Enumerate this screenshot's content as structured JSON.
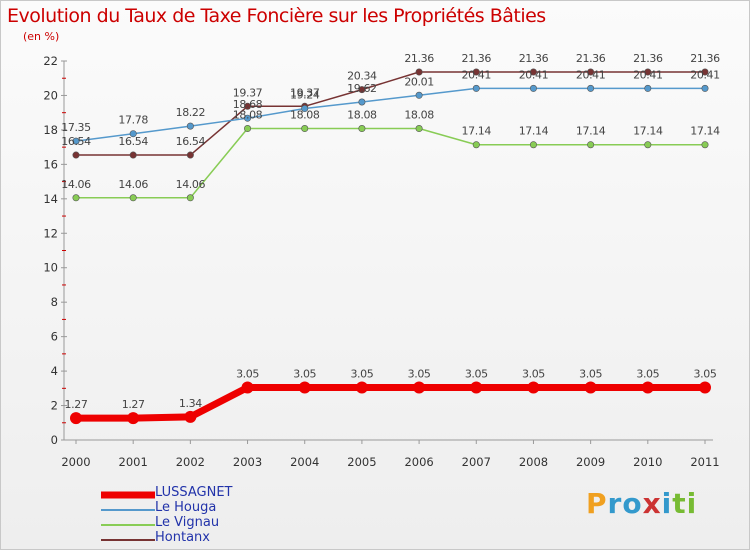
{
  "title": "Evolution du Taux de Taxe Foncière sur les Propriétés Bâties",
  "subtitle": "(en %)",
  "brand": {
    "letters": [
      "P",
      "r",
      "o",
      "x",
      "i",
      "t",
      "i"
    ],
    "colors": [
      "#f0a020",
      "#3399cc",
      "#3399cc",
      "#cc3333",
      "#3399cc",
      "#77bb33",
      "#77bb33"
    ]
  },
  "chart_data": {
    "type": "line",
    "title": "Evolution du Taux de Taxe Foncière sur les Propriétés Bâties",
    "subtitle": "(en %)",
    "xlabel": "",
    "ylabel": "",
    "x": [
      "2000",
      "2001",
      "2002",
      "2003",
      "2004",
      "2005",
      "2006",
      "2007",
      "2008",
      "2009",
      "2010",
      "2011"
    ],
    "ylim": [
      0,
      22
    ],
    "yticks": [
      0,
      2,
      4,
      6,
      8,
      10,
      12,
      14,
      16,
      18,
      20,
      22
    ],
    "grid": false,
    "legend_position": "bottom-left",
    "series": [
      {
        "name": "LUSSAGNET",
        "color": "#ee0000",
        "values": [
          1.27,
          1.27,
          1.34,
          3.05,
          3.05,
          3.05,
          3.05,
          3.05,
          3.05,
          3.05,
          3.05,
          3.05
        ],
        "labels": [
          "1.27",
          "1.27",
          "1.34",
          "3.05",
          "3.05",
          "3.05",
          "3.05",
          "3.05",
          "3.05",
          "3.05",
          "3.05",
          "3.05"
        ]
      },
      {
        "name": "Le Houga",
        "color": "#5599cc",
        "values": [
          17.35,
          17.78,
          18.22,
          18.68,
          19.24,
          19.62,
          20.01,
          20.41,
          20.41,
          20.41,
          20.41,
          20.41
        ],
        "labels": [
          "17.35",
          "17.78",
          "18.22",
          "18.68",
          "19.24",
          "19.62",
          "20.01",
          "20.41",
          "20.41",
          "20.41",
          "20.41",
          "20.41"
        ]
      },
      {
        "name": "Le Vignau",
        "color": "#88cc55",
        "values": [
          14.06,
          14.06,
          14.06,
          18.08,
          18.08,
          18.08,
          18.08,
          17.14,
          17.14,
          17.14,
          17.14,
          17.14
        ],
        "labels": [
          "14.06",
          "14.06",
          "14.06",
          "18.08",
          "18.08",
          "18.08",
          "18.08",
          "17.14",
          "17.14",
          "17.14",
          "17.14",
          "17.14"
        ]
      },
      {
        "name": "Hontanx",
        "color": "#773333",
        "values": [
          16.54,
          16.54,
          16.54,
          19.37,
          19.37,
          20.34,
          21.36,
          21.36,
          21.36,
          21.36,
          21.36,
          21.36
        ],
        "labels": [
          "16.54",
          "16.54",
          "16.54",
          "19.37",
          "19.37",
          "20.34",
          "21.36",
          "21.36",
          "21.36",
          "21.36",
          "21.36",
          "21.36"
        ]
      }
    ]
  }
}
